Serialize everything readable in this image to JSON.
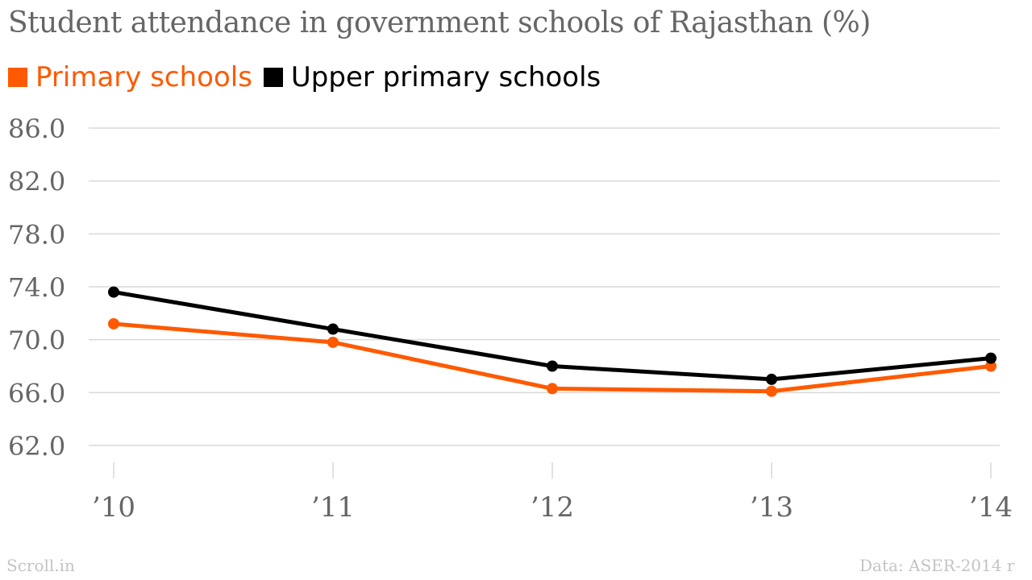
{
  "chart_data": {
    "type": "line",
    "title": "Student attendance in government schools of Rajasthan (%)",
    "categories": [
      "’10",
      "’11",
      "’12",
      "’13",
      "’14"
    ],
    "series": [
      {
        "name": "Primary schools",
        "color": "#ff5a00",
        "values": [
          71.2,
          69.8,
          66.3,
          66.1,
          68.0
        ]
      },
      {
        "name": "Upper primary schools",
        "color": "#000000",
        "values": [
          73.6,
          70.8,
          68.0,
          67.0,
          68.6
        ]
      }
    ],
    "y_ticks": [
      "86.0",
      "82.0",
      "78.0",
      "74.0",
      "70.0",
      "66.0",
      "62.0"
    ],
    "ylim": [
      62,
      86
    ],
    "grid": true,
    "legend_position": "top-left"
  },
  "footer": {
    "source_brand": "Scroll.in",
    "data_credit": "Data: ASER-2014 r"
  }
}
